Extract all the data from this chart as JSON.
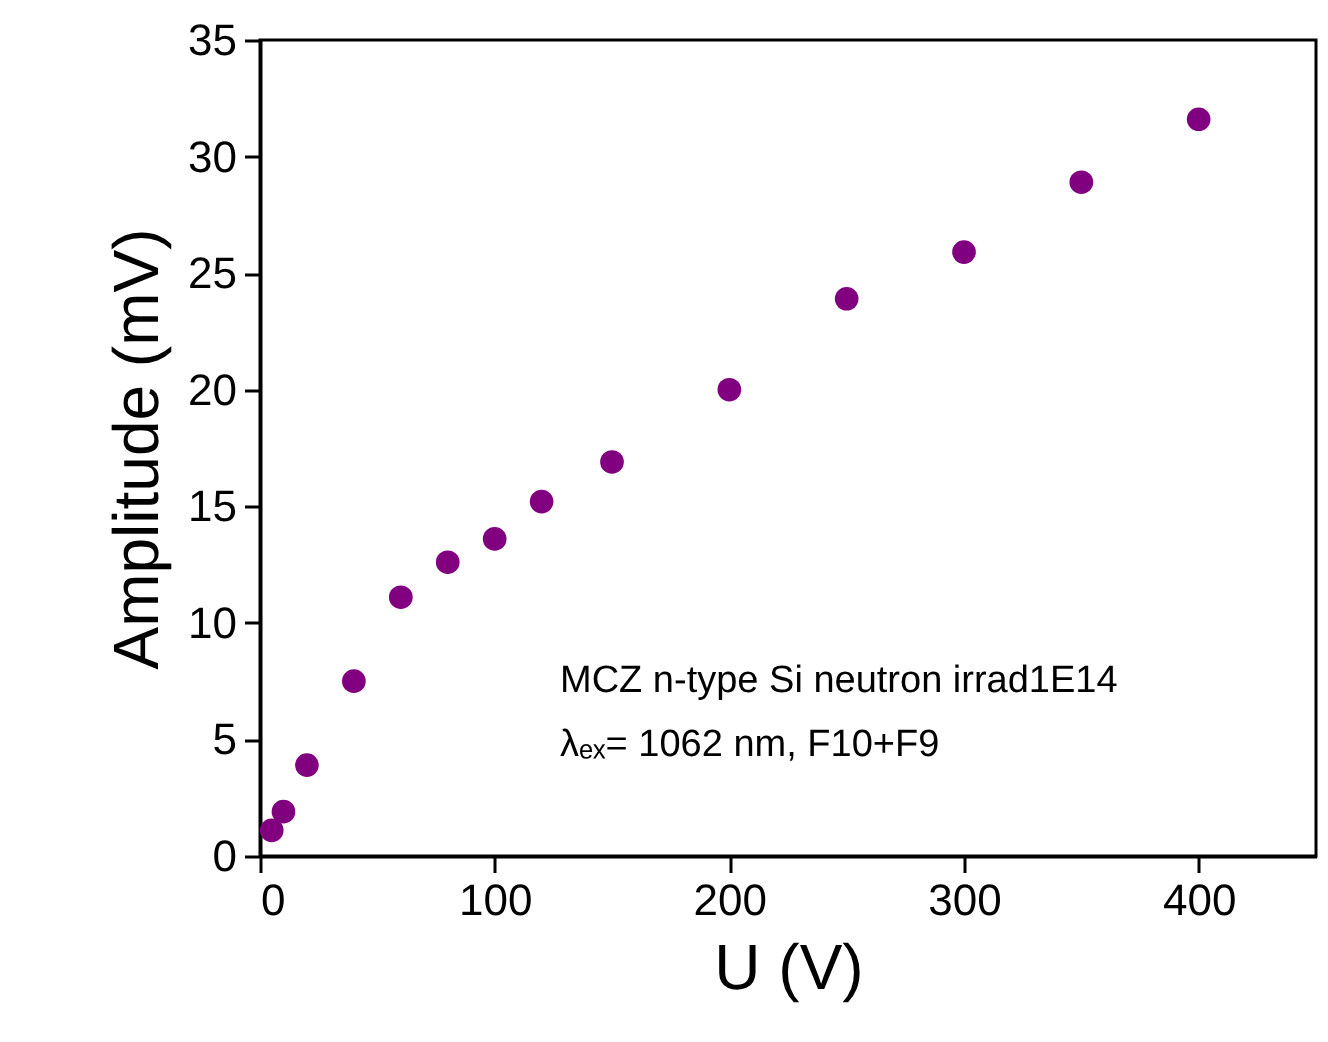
{
  "chart_data": {
    "type": "scatter",
    "xlabel": "U (V)",
    "ylabel": "Amplitude (mV)",
    "x": [
      5,
      10,
      20,
      40,
      60,
      80,
      100,
      120,
      150,
      200,
      250,
      300,
      350,
      400
    ],
    "series": [
      {
        "color": "#800080",
        "values": [
          1.1,
          1.9,
          3.9,
          7.5,
          11.1,
          12.6,
          13.6,
          15.2,
          16.9,
          20.0,
          23.9,
          25.9,
          28.9,
          31.6
        ]
      }
    ],
    "xlim": [
      0,
      450
    ],
    "xticks": [
      0,
      100,
      200,
      300,
      400
    ],
    "ylim": [
      0,
      35
    ],
    "yticks": [
      0,
      5,
      10,
      15,
      20,
      25,
      30,
      35
    ],
    "grid": false,
    "marker": "circle",
    "annotations": [
      "MCZ n-type Si neutron irrad1E14",
      "λₑₓ= 1062 nm, F10+F9"
    ]
  }
}
